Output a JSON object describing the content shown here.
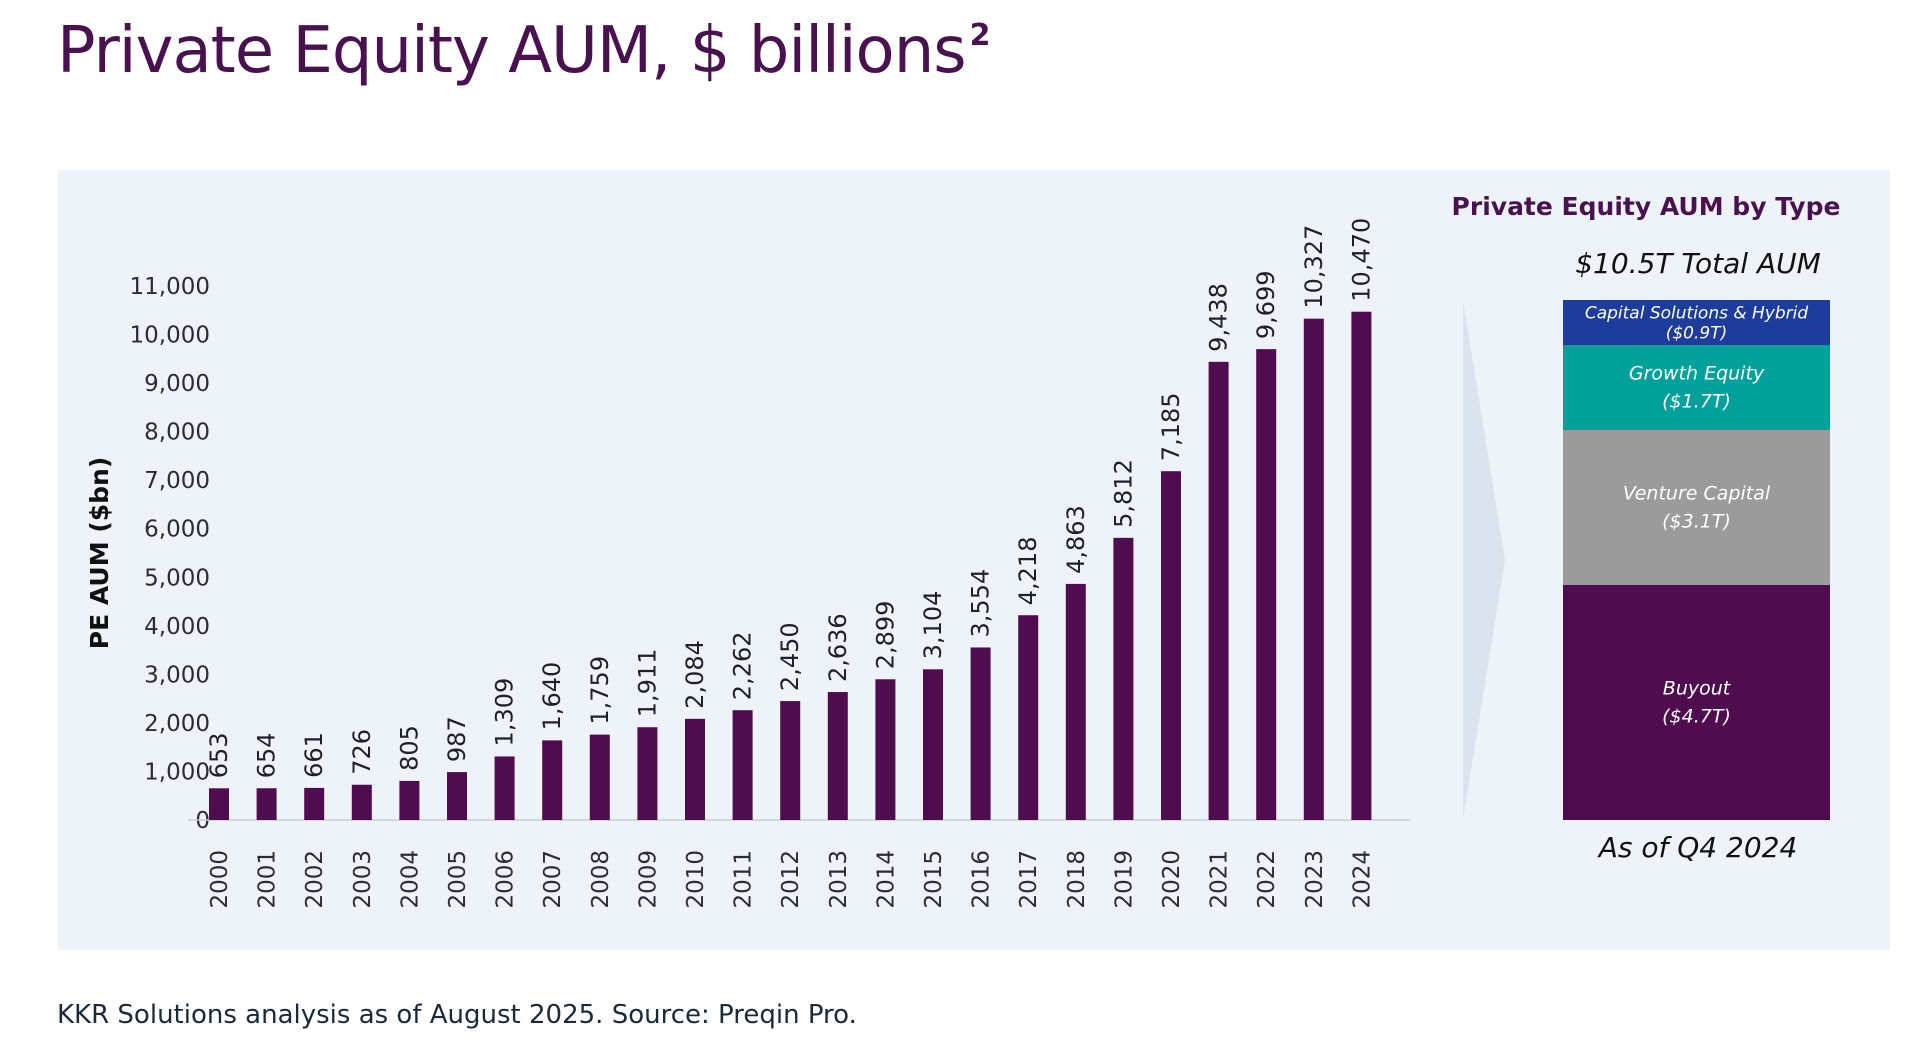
{
  "page": {
    "title": "Private Equity AUM, $ billions",
    "title_superscript": "2",
    "source_note": "KKR Solutions analysis as of August 2025. Source: Preqin Pro."
  },
  "chart_data": [
    {
      "type": "bar",
      "ylabel": "PE AUM ($bn)",
      "ylim": [
        0,
        11000
      ],
      "yticks": [
        0,
        1000,
        2000,
        3000,
        4000,
        5000,
        6000,
        7000,
        8000,
        9000,
        10000,
        11000
      ],
      "ytick_labels": [
        "0",
        "1,000",
        "2,000",
        "3,000",
        "4,000",
        "5,000",
        "6,000",
        "7,000",
        "8,000",
        "9,000",
        "10,000",
        "11,000"
      ],
      "categories": [
        "2000",
        "2001",
        "2002",
        "2003",
        "2004",
        "2005",
        "2006",
        "2007",
        "2008",
        "2009",
        "2010",
        "2011",
        "2012",
        "2013",
        "2014",
        "2015",
        "2016",
        "2017",
        "2018",
        "2019",
        "2020",
        "2021",
        "2022",
        "2023",
        "2024"
      ],
      "values": [
        653,
        654,
        661,
        726,
        805,
        987,
        1309,
        1640,
        1759,
        1911,
        2084,
        2262,
        2450,
        2636,
        2899,
        3104,
        3554,
        4218,
        4863,
        5812,
        7185,
        9438,
        9699,
        10327,
        10470
      ],
      "value_labels": [
        "653",
        "654",
        "661",
        "726",
        "805",
        "987",
        "1,309",
        "1,640",
        "1,759",
        "1,911",
        "2,084",
        "2,262",
        "2,450",
        "2,636",
        "2,899",
        "3,104",
        "3,554",
        "4,218",
        "4,863",
        "5,812",
        "7,185",
        "9,438",
        "9,699",
        "10,327",
        "10,470"
      ],
      "bar_color": "#4f0c4f",
      "grid": false
    },
    {
      "type": "bar",
      "subtype": "stacked-100",
      "title": "Private Equity AUM by Type",
      "subtitle": "$10.5T Total AUM",
      "footer": "As of Q4 2024",
      "segments": [
        {
          "name": "Buyout",
          "amount_label": "($4.7T)",
          "value": 4.7,
          "color": "#4f0c4f"
        },
        {
          "name": "Venture Capital",
          "amount_label": "($3.1T)",
          "value": 3.1,
          "color": "#9b9b9b"
        },
        {
          "name": "Growth Equity",
          "amount_label": "($1.7T)",
          "value": 1.7,
          "color": "#00a19a"
        },
        {
          "name": "Capital Solutions & Hybrid",
          "amount_label": "($0.9T)",
          "value": 0.9,
          "color": "#1e3c9c"
        }
      ]
    }
  ]
}
